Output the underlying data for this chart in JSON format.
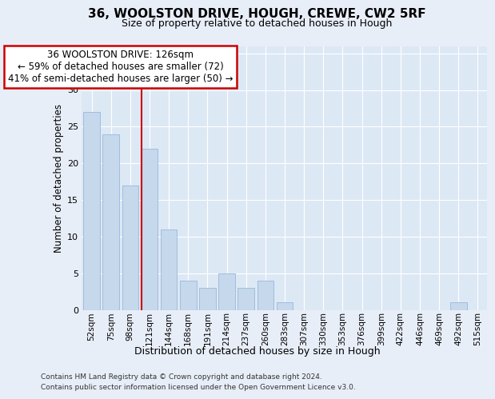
{
  "title1": "36, WOOLSTON DRIVE, HOUGH, CREWE, CW2 5RF",
  "title2": "Size of property relative to detached houses in Hough",
  "xlabel": "Distribution of detached houses by size in Hough",
  "ylabel": "Number of detached properties",
  "categories": [
    "52sqm",
    "75sqm",
    "98sqm",
    "121sqm",
    "144sqm",
    "168sqm",
    "191sqm",
    "214sqm",
    "237sqm",
    "260sqm",
    "283sqm",
    "307sqm",
    "330sqm",
    "353sqm",
    "376sqm",
    "399sqm",
    "422sqm",
    "446sqm",
    "469sqm",
    "492sqm",
    "515sqm"
  ],
  "values": [
    27,
    24,
    17,
    22,
    11,
    4,
    3,
    5,
    3,
    4,
    1,
    0,
    0,
    0,
    0,
    0,
    0,
    0,
    0,
    1,
    0
  ],
  "bar_color": "#c5d8ec",
  "bar_edge_color": "#9ab8d8",
  "annotation_text": "36 WOOLSTON DRIVE: 126sqm\n← 59% of detached houses are smaller (72)\n41% of semi-detached houses are larger (50) →",
  "annotation_box_facecolor": "#ffffff",
  "annotation_box_edgecolor": "#cc0000",
  "vline_color": "#cc0000",
  "vline_xindex": 3,
  "ylim": [
    0,
    36
  ],
  "yticks": [
    0,
    5,
    10,
    15,
    20,
    25,
    30,
    35
  ],
  "bg_color": "#e8eef8",
  "plot_bg_color": "#dde8f5",
  "grid_color": "#ffffff",
  "footer1": "Contains HM Land Registry data © Crown copyright and database right 2024.",
  "footer2": "Contains public sector information licensed under the Open Government Licence v3.0.",
  "title1_fontsize": 11,
  "title2_fontsize": 9,
  "ylabel_fontsize": 8.5,
  "xlabel_fontsize": 9,
  "tick_fontsize": 7.5,
  "annotation_fontsize": 8.5,
  "footer_fontsize": 6.5
}
